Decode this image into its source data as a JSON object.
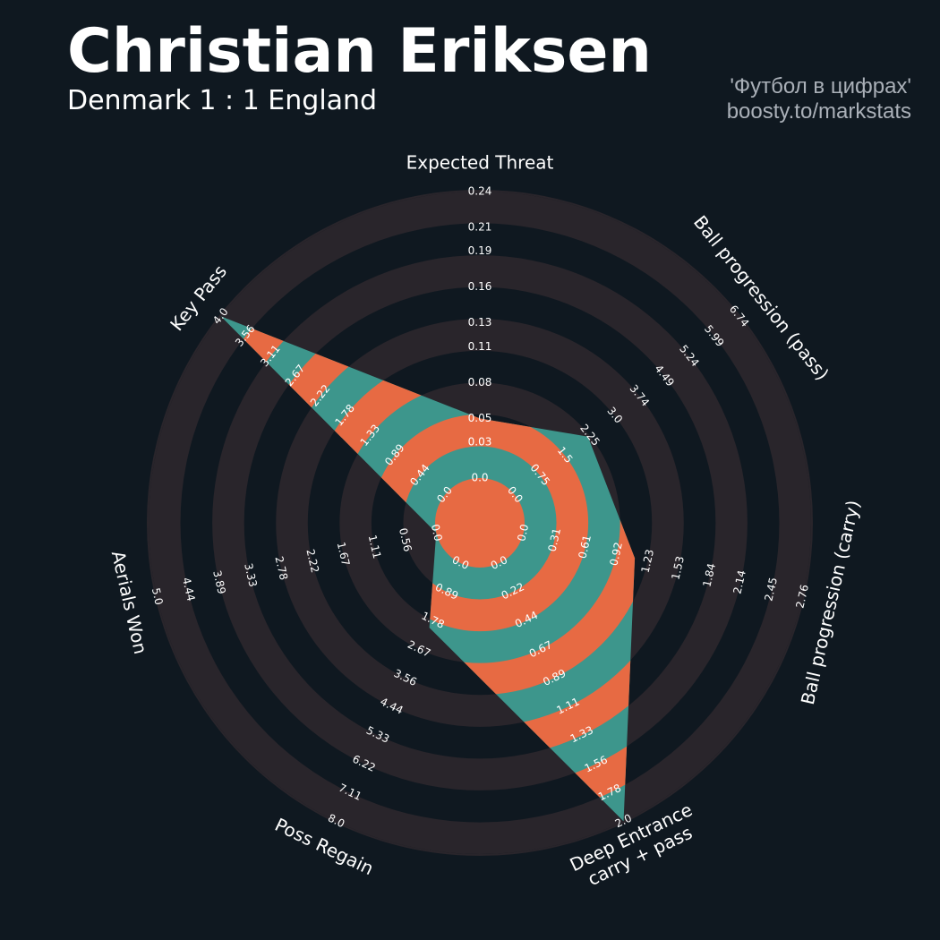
{
  "chart_data": {
    "type": "radar",
    "title": "Christian Eriksen",
    "subtitle": "Denmark 1 : 1 England",
    "annotations": [
      "'Футбол в цифрах'",
      "boosty.to/markstats"
    ],
    "categories": [
      "Expected Threat",
      "Ball progression (pass)",
      "Ball progression (carry)",
      "Deep Entrance\ncarry + pass",
      "Poss Regain",
      "Aerials Won",
      "Key Pass"
    ],
    "values": [
      0.05,
      2.2,
      1.1,
      2.0,
      2.0,
      0.0,
      4.0
    ],
    "colors": {
      "background": "#0f1820",
      "rings": "#29252b",
      "polygon": "#3d968c",
      "polygon_alt": "#e76a43"
    },
    "axes": [
      {
        "lim": [
          0,
          0.24
        ],
        "ticks": [
          {
            "value": 0,
            "label": "0.0"
          },
          0.03,
          0.05,
          0.08,
          0.11,
          0.13,
          0.16,
          0.19,
          0.21,
          0.24
        ]
      },
      {
        "lim": [
          0,
          6.74
        ],
        "ticks": [
          {
            "value": 0,
            "label": "0.0"
          },
          0.75,
          1.5,
          2.25,
          {
            "value": 3,
            "label": "3.0"
          },
          3.74,
          4.49,
          5.24,
          5.99,
          6.74
        ]
      },
      {
        "lim": [
          0,
          2.76
        ],
        "ticks": [
          {
            "value": 0,
            "label": "0.0"
          },
          0.31,
          0.61,
          0.92,
          1.23,
          1.53,
          1.84,
          2.14,
          2.45,
          2.76
        ]
      },
      {
        "lim": [
          0,
          2
        ],
        "ticks": [
          {
            "value": 0,
            "label": "0.0"
          },
          0.22,
          0.44,
          0.67,
          0.89,
          1.11,
          1.33,
          1.56,
          1.78,
          {
            "value": 2,
            "label": "2.0"
          }
        ]
      },
      {
        "lim": [
          0,
          8
        ],
        "ticks": [
          {
            "value": 0,
            "label": "0.0"
          },
          0.89,
          1.78,
          2.67,
          3.56,
          4.44,
          5.33,
          6.22,
          7.11,
          {
            "value": 8,
            "label": "8.0"
          }
        ]
      },
      {
        "lim": [
          0,
          5
        ],
        "ticks": [
          {
            "value": 0,
            "label": "0.0"
          },
          0.56,
          1.11,
          1.67,
          2.22,
          2.78,
          3.33,
          3.89,
          4.44,
          {
            "value": 5,
            "label": "5.0"
          }
        ]
      },
      {
        "lim": [
          0,
          4
        ],
        "ticks": [
          {
            "value": 0,
            "label": "0.0"
          },
          0.44,
          0.89,
          1.33,
          1.78,
          2.22,
          2.67,
          3.11,
          3.56,
          {
            "value": 4,
            "label": "4.0"
          }
        ]
      }
    ]
  }
}
